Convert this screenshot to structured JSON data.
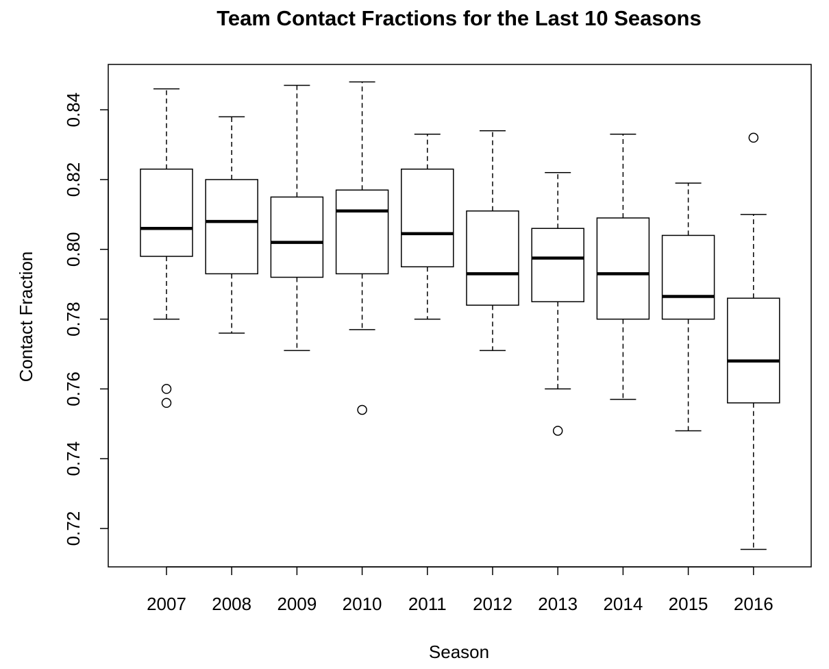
{
  "chart_data": {
    "type": "boxplot",
    "title": "Team Contact Fractions for the Last 10 Seasons",
    "xlabel": "Season",
    "ylabel": "Contact Fraction",
    "categories": [
      "2007",
      "2008",
      "2009",
      "2010",
      "2011",
      "2012",
      "2013",
      "2014",
      "2015",
      "2016"
    ],
    "ylim": [
      0.709,
      0.853
    ],
    "yticks": [
      "0.72",
      "0.74",
      "0.76",
      "0.78",
      "0.80",
      "0.82",
      "0.84"
    ],
    "grid": false,
    "legend": "none",
    "boxes": [
      {
        "category": "2007",
        "whisker_low": 0.78,
        "q1": 0.798,
        "median": 0.806,
        "q3": 0.823,
        "whisker_high": 0.846,
        "outliers": [
          0.76,
          0.756
        ]
      },
      {
        "category": "2008",
        "whisker_low": 0.776,
        "q1": 0.793,
        "median": 0.808,
        "q3": 0.82,
        "whisker_high": 0.838,
        "outliers": []
      },
      {
        "category": "2009",
        "whisker_low": 0.771,
        "q1": 0.792,
        "median": 0.802,
        "q3": 0.815,
        "whisker_high": 0.847,
        "outliers": []
      },
      {
        "category": "2010",
        "whisker_low": 0.777,
        "q1": 0.793,
        "median": 0.811,
        "q3": 0.817,
        "whisker_high": 0.848,
        "outliers": [
          0.754
        ]
      },
      {
        "category": "2011",
        "whisker_low": 0.78,
        "q1": 0.795,
        "median": 0.8045,
        "q3": 0.823,
        "whisker_high": 0.833,
        "outliers": []
      },
      {
        "category": "2012",
        "whisker_low": 0.771,
        "q1": 0.784,
        "median": 0.793,
        "q3": 0.811,
        "whisker_high": 0.834,
        "outliers": []
      },
      {
        "category": "2013",
        "whisker_low": 0.76,
        "q1": 0.785,
        "median": 0.7975,
        "q3": 0.806,
        "whisker_high": 0.822,
        "outliers": [
          0.748
        ]
      },
      {
        "category": "2014",
        "whisker_low": 0.757,
        "q1": 0.78,
        "median": 0.793,
        "q3": 0.809,
        "whisker_high": 0.833,
        "outliers": []
      },
      {
        "category": "2015",
        "whisker_low": 0.748,
        "q1": 0.78,
        "median": 0.7865,
        "q3": 0.804,
        "whisker_high": 0.819,
        "outliers": []
      },
      {
        "category": "2016",
        "whisker_low": 0.714,
        "q1": 0.756,
        "median": 0.768,
        "q3": 0.786,
        "whisker_high": 0.81,
        "outliers": [
          0.832
        ]
      }
    ]
  }
}
